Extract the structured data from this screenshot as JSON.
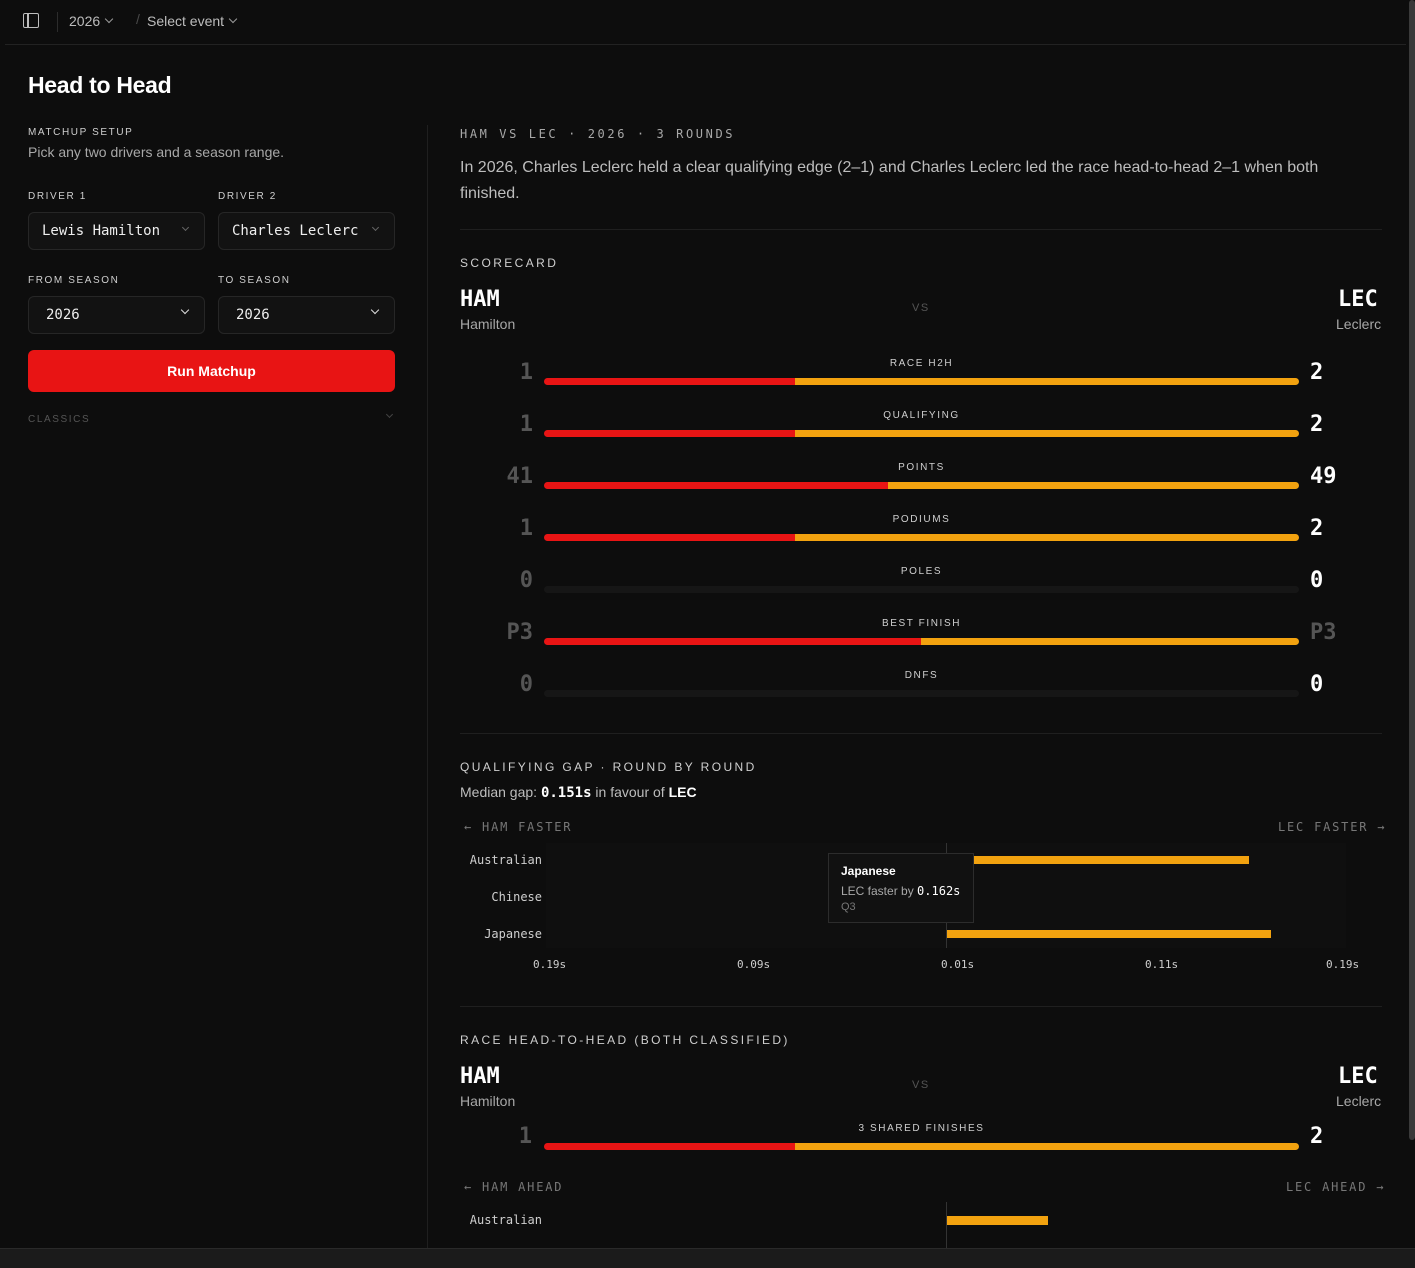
{
  "topbar": {
    "year": "2026",
    "event": "Select event",
    "separator": "/"
  },
  "page": {
    "title": "Head to Head"
  },
  "setup": {
    "heading": "MATCHUP SETUP",
    "subtitle": "Pick any two drivers and a season range.",
    "driver1_label": "DRIVER 1",
    "driver1": "Lewis Hamilton",
    "driver2_label": "DRIVER 2",
    "driver2": "Charles Leclerc",
    "from_label": "FROM SEASON",
    "from": "2026",
    "to_label": "TO SEASON",
    "to": "2026",
    "run_button": "Run Matchup",
    "classics": "CLASSICS"
  },
  "summary": {
    "meta": "HAM VS LEC · 2026 · 3 ROUNDS",
    "text": "In 2026, Charles Leclerc held a clear qualifying edge (2–1) and Charles Leclerc led the race head-to-head 2–1 when both finished."
  },
  "scorecard": {
    "heading": "SCORECARD",
    "left_code": "HAM",
    "left_name": "Hamilton",
    "right_code": "LEC",
    "right_name": "Leclerc",
    "vs": "VS",
    "rows": [
      {
        "label": "RACE H2H",
        "left": "1",
        "right": "2",
        "left_share": 0.333,
        "right_share": 0.667,
        "right_dim": false
      },
      {
        "label": "QUALIFYING",
        "left": "1",
        "right": "2",
        "left_share": 0.333,
        "right_share": 0.667,
        "right_dim": false
      },
      {
        "label": "POINTS",
        "left": "41",
        "right": "49",
        "left_share": 0.456,
        "right_share": 0.544,
        "right_dim": false
      },
      {
        "label": "PODIUMS",
        "left": "1",
        "right": "2",
        "left_share": 0.333,
        "right_share": 0.667,
        "right_dim": false
      },
      {
        "label": "POLES",
        "left": "0",
        "right": "0",
        "left_share": 0,
        "right_share": 0,
        "right_dim": false
      },
      {
        "label": "BEST FINISH",
        "left": "P3",
        "right": "P3",
        "left_share": 0.5,
        "right_share": 0.5,
        "right_dim": true
      },
      {
        "label": "DNFS",
        "left": "0",
        "right": "0",
        "left_share": 0,
        "right_share": 0,
        "right_dim": false
      }
    ]
  },
  "qualifying_gap": {
    "heading": "QUALIFYING GAP · ROUND BY ROUND",
    "median_prefix": "Median gap:",
    "median_value": "0.151s",
    "median_mid": "in favour of",
    "median_driver": "LEC",
    "left_axis": "← HAM FASTER",
    "right_axis": "LEC FASTER →",
    "tooltip": {
      "title": "Japanese",
      "prefix": "LEC faster by",
      "value": "0.162s",
      "session": "Q3"
    }
  },
  "race_h2h": {
    "heading": "RACE HEAD-TO-HEAD (BOTH CLASSIFIED)",
    "left_code": "HAM",
    "left_name": "Hamilton",
    "right_code": "LEC",
    "right_name": "Leclerc",
    "vs": "VS",
    "bar_label": "3 SHARED FINISHES",
    "left": "1",
    "right": "2",
    "left_share": 0.333,
    "right_share": 0.667,
    "left_axis": "← HAM AHEAD",
    "right_axis": "LEC AHEAD →",
    "first_round": "Australian"
  },
  "chart_data": [
    {
      "type": "bar",
      "orientation": "horizontal",
      "categories": [
        "Australian",
        "Chinese",
        "Japanese"
      ],
      "values": [
        0.151,
        0,
        0.162
      ],
      "xlabel": "",
      "ylabel": "",
      "xticks": [
        "0.19s",
        "0.09s",
        "0.01s",
        "0.11s",
        "0.19s"
      ],
      "color": "#f2a20f"
    },
    {
      "type": "bar",
      "orientation": "horizontal",
      "categories": [
        "Australian"
      ],
      "values": [
        1
      ],
      "color": "#f2a20f"
    }
  ],
  "colors": {
    "ham": "#e81414",
    "lec": "#f2a20f",
    "bg": "#0d0d0d"
  }
}
